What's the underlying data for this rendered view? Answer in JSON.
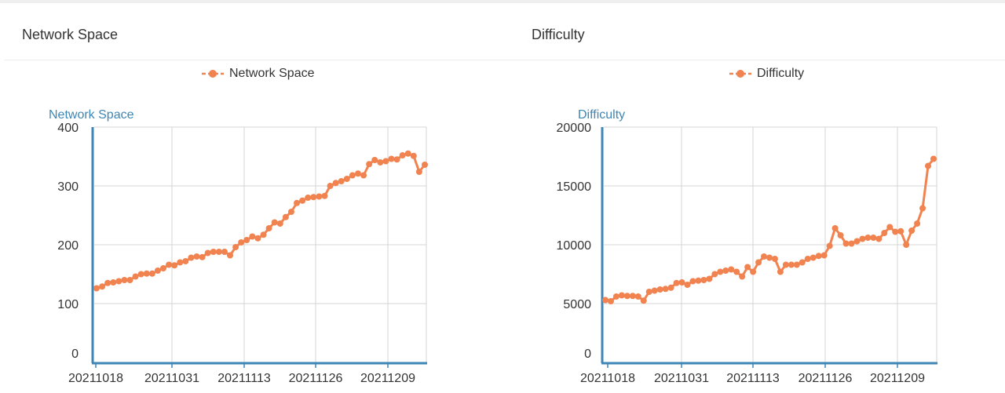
{
  "panels": [
    {
      "title": "Network Space",
      "legend_label": "Network Space",
      "y_axis_title": "Network Space"
    },
    {
      "title": "Difficulty",
      "legend_label": "Difficulty",
      "y_axis_title": "Difficulty"
    }
  ],
  "colors": {
    "series": "#f0834f",
    "axis": "#3d86b5",
    "grid": "#d4d4d4",
    "text": "#333333"
  },
  "chart_data": [
    {
      "type": "line",
      "title": "",
      "ylabel": "Network Space",
      "xlabel": "",
      "ylim": [
        0,
        400
      ],
      "y_ticks": [
        "0",
        "100",
        "200",
        "300",
        "400"
      ],
      "x_ticks": [
        "20211018",
        "20211031",
        "20211113",
        "20211126",
        "20211209"
      ],
      "legend": "top-center",
      "grid": true,
      "series": [
        {
          "name": "Network Space",
          "values": [
            126,
            129,
            135,
            136,
            138,
            140,
            140,
            146,
            150,
            151,
            151,
            156,
            160,
            166,
            165,
            170,
            172,
            178,
            180,
            179,
            186,
            188,
            188,
            188,
            182,
            196,
            204,
            208,
            214,
            211,
            217,
            228,
            238,
            236,
            247,
            256,
            271,
            275,
            280,
            281,
            282,
            283,
            300,
            305,
            308,
            312,
            318,
            321,
            318,
            337,
            344,
            340,
            342,
            346,
            345,
            352,
            355,
            351,
            324,
            336
          ]
        }
      ]
    },
    {
      "type": "line",
      "title": "",
      "ylabel": "Difficulty",
      "xlabel": "",
      "ylim": [
        0,
        20000
      ],
      "y_ticks": [
        "0",
        "5000",
        "10000",
        "15000",
        "20000"
      ],
      "x_ticks": [
        "20211018",
        "20211031",
        "20211113",
        "20211126",
        "20211209"
      ],
      "legend": "top-center",
      "grid": true,
      "series": [
        {
          "name": "Difficulty",
          "values": [
            5300,
            5200,
            5600,
            5700,
            5650,
            5650,
            5600,
            5250,
            6000,
            6100,
            6200,
            6250,
            6350,
            6750,
            6800,
            6600,
            6900,
            6950,
            7000,
            7100,
            7500,
            7700,
            7800,
            7900,
            7700,
            7300,
            8100,
            7700,
            8500,
            9000,
            8900,
            8800,
            7700,
            8300,
            8300,
            8300,
            8500,
            8800,
            8900,
            9050,
            9100,
            9900,
            11400,
            10800,
            10100,
            10100,
            10300,
            10500,
            10600,
            10600,
            10500,
            11000,
            11500,
            11100,
            11150,
            10000,
            11200,
            11800,
            13100,
            16700,
            17300
          ]
        }
      ]
    }
  ]
}
